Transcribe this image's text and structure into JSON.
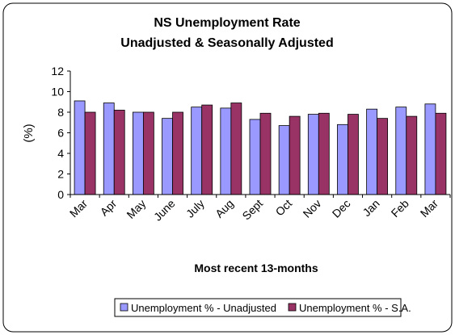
{
  "chart_data": {
    "type": "bar",
    "title": "NS Unemployment Rate",
    "subtitle": "Unadjusted & Seasonally Adjusted",
    "xlabel": "Most recent 13-months",
    "ylabel": "(%)",
    "ylim": [
      0,
      12
    ],
    "yticks": [
      "0",
      "2",
      "4",
      "6",
      "8",
      "10",
      "12"
    ],
    "grid": false,
    "legend_position": "bottom",
    "categories": [
      "Mar",
      "Apr",
      "May",
      "June",
      "July",
      "Aug",
      "Sept",
      "Oct",
      "Nov",
      "Dec",
      "Jan",
      "Feb",
      "Mar"
    ],
    "series": [
      {
        "name": "Unemployment % - Unadjusted",
        "color": "#9999ff",
        "values": [
          9.1,
          8.9,
          8.0,
          7.4,
          8.5,
          8.4,
          7.3,
          6.7,
          7.8,
          6.8,
          8.3,
          8.5,
          8.8
        ]
      },
      {
        "name": "Unemployment % - S.A.",
        "color": "#993366",
        "values": [
          8.0,
          8.2,
          8.0,
          8.0,
          8.7,
          8.9,
          7.9,
          7.6,
          7.9,
          7.8,
          7.4,
          7.6,
          7.9
        ]
      }
    ]
  }
}
